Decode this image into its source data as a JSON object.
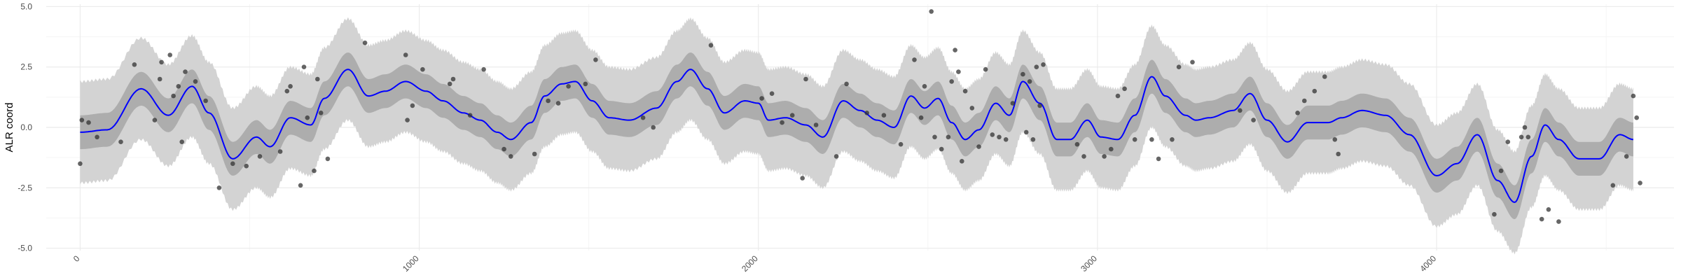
{
  "chart_data": {
    "type": "line",
    "title": "",
    "xlabel": "",
    "ylabel": "ALR coord",
    "xlim": [
      -100,
      4700
    ],
    "ylim": [
      -5.1,
      5.1
    ],
    "x_ticks": [
      0,
      1000,
      2000,
      3000,
      4000
    ],
    "y_ticks": [
      -5.0,
      -2.5,
      0.0,
      2.5,
      5.0
    ],
    "x_tick_labels": [
      "0",
      "1000",
      "2000",
      "3000",
      "4000"
    ],
    "y_tick_labels": [
      "-5.0",
      "-2.5",
      "0.0",
      "2.5",
      "5.0"
    ],
    "grid": true,
    "legend": "none",
    "colors": {
      "mean_line": "#0000ff",
      "inner_band": "#adadad",
      "outer_band": "#d3d3d3",
      "points": "#333333",
      "grid_major": "#ebebeb",
      "grid_minor": "#f5f5f5",
      "background": "#ffffff"
    },
    "mean": {
      "x": [
        0,
        80,
        180,
        260,
        330,
        380,
        450,
        520,
        560,
        620,
        680,
        720,
        790,
        850,
        900,
        960,
        1020,
        1070,
        1130,
        1180,
        1230,
        1270,
        1330,
        1370,
        1420,
        1460,
        1510,
        1560,
        1620,
        1700,
        1760,
        1800,
        1850,
        1900,
        1960,
        2000,
        2030,
        2080,
        2140,
        2190,
        2250,
        2300,
        2350,
        2400,
        2450,
        2490,
        2530,
        2570,
        2610,
        2650,
        2700,
        2740,
        2780,
        2830,
        2880,
        2920,
        2970,
        3010,
        3060,
        3110,
        3160,
        3200,
        3260,
        3290,
        3330,
        3400,
        3450,
        3500,
        3560,
        3620,
        3680,
        3720,
        3780,
        3850,
        3920,
        4000,
        4060,
        4120,
        4180,
        4230,
        4280,
        4320,
        4360,
        4420,
        4480,
        4540,
        4580
      ],
      "y": [
        -0.2,
        -0.1,
        1.6,
        0.5,
        1.7,
        0.6,
        -1.3,
        -0.4,
        -0.8,
        0.4,
        0.1,
        1.2,
        2.4,
        1.3,
        1.5,
        1.9,
        1.5,
        1.1,
        0.6,
        0.3,
        -0.2,
        -0.5,
        0.2,
        1.3,
        1.8,
        1.9,
        1.1,
        0.4,
        0.3,
        0.8,
        1.9,
        2.4,
        1.6,
        0.6,
        1.1,
        1.0,
        0.3,
        0.4,
        0.1,
        -0.4,
        1.1,
        0.7,
        0.3,
        0.0,
        1.3,
        0.8,
        1.2,
        0.2,
        -0.5,
        -0.1,
        1.0,
        0.5,
        1.9,
        1.0,
        -0.5,
        -0.5,
        0.3,
        -0.4,
        -0.5,
        0.5,
        2.1,
        1.3,
        0.5,
        0.3,
        0.4,
        0.7,
        1.4,
        0.3,
        -0.6,
        0.2,
        0.2,
        0.4,
        0.7,
        0.5,
        -0.3,
        -2.0,
        -1.5,
        -0.3,
        -2.2,
        -3.1,
        -1.2,
        0.1,
        -0.5,
        -1.3,
        -1.3,
        -0.3,
        -0.5
      ]
    },
    "inner_band_halfwidth": 0.7,
    "outer_band_halfwidth": 2.1,
    "points": [
      {
        "x": 0,
        "y": -1.5
      },
      {
        "x": 5,
        "y": 0.3
      },
      {
        "x": 25,
        "y": 0.2
      },
      {
        "x": 50,
        "y": -0.4
      },
      {
        "x": 120,
        "y": -0.6
      },
      {
        "x": 160,
        "y": 2.6
      },
      {
        "x": 220,
        "y": 0.3
      },
      {
        "x": 235,
        "y": 2.0
      },
      {
        "x": 240,
        "y": 2.7
      },
      {
        "x": 265,
        "y": 3.0
      },
      {
        "x": 275,
        "y": 1.3
      },
      {
        "x": 290,
        "y": 1.7
      },
      {
        "x": 300,
        "y": -0.6
      },
      {
        "x": 310,
        "y": 2.3
      },
      {
        "x": 340,
        "y": 1.9
      },
      {
        "x": 370,
        "y": 1.1
      },
      {
        "x": 410,
        "y": -2.5
      },
      {
        "x": 450,
        "y": -1.5
      },
      {
        "x": 490,
        "y": -1.6
      },
      {
        "x": 530,
        "y": -1.2
      },
      {
        "x": 590,
        "y": -1.0
      },
      {
        "x": 610,
        "y": 1.5
      },
      {
        "x": 620,
        "y": 1.7
      },
      {
        "x": 650,
        "y": -2.4
      },
      {
        "x": 660,
        "y": 2.5
      },
      {
        "x": 670,
        "y": 0.4
      },
      {
        "x": 690,
        "y": -1.8
      },
      {
        "x": 700,
        "y": 2.0
      },
      {
        "x": 710,
        "y": 0.6
      },
      {
        "x": 730,
        "y": -1.3
      },
      {
        "x": 840,
        "y": 3.5
      },
      {
        "x": 960,
        "y": 3.0
      },
      {
        "x": 965,
        "y": 0.3
      },
      {
        "x": 980,
        "y": 0.9
      },
      {
        "x": 1010,
        "y": 2.4
      },
      {
        "x": 1090,
        "y": 1.8
      },
      {
        "x": 1100,
        "y": 2.0
      },
      {
        "x": 1150,
        "y": 0.5
      },
      {
        "x": 1190,
        "y": 2.4
      },
      {
        "x": 1250,
        "y": -0.9
      },
      {
        "x": 1270,
        "y": -1.2
      },
      {
        "x": 1340,
        "y": -1.1
      },
      {
        "x": 1380,
        "y": 1.1
      },
      {
        "x": 1410,
        "y": 1.0
      },
      {
        "x": 1440,
        "y": 1.7
      },
      {
        "x": 1490,
        "y": 1.8
      },
      {
        "x": 1520,
        "y": 2.8
      },
      {
        "x": 1660,
        "y": 0.4
      },
      {
        "x": 1690,
        "y": 0.0
      },
      {
        "x": 1860,
        "y": 3.4
      },
      {
        "x": 2010,
        "y": 1.2
      },
      {
        "x": 2040,
        "y": 1.4
      },
      {
        "x": 2070,
        "y": 0.2
      },
      {
        "x": 2100,
        "y": 0.5
      },
      {
        "x": 2130,
        "y": -2.1
      },
      {
        "x": 2140,
        "y": 2.0
      },
      {
        "x": 2170,
        "y": 0.1
      },
      {
        "x": 2230,
        "y": -1.2
      },
      {
        "x": 2260,
        "y": 1.8
      },
      {
        "x": 2320,
        "y": 0.6
      },
      {
        "x": 2370,
        "y": 0.5
      },
      {
        "x": 2420,
        "y": -0.7
      },
      {
        "x": 2460,
        "y": 2.8
      },
      {
        "x": 2480,
        "y": 0.4
      },
      {
        "x": 2490,
        "y": 1.7
      },
      {
        "x": 2510,
        "y": 4.8
      },
      {
        "x": 2520,
        "y": -0.4
      },
      {
        "x": 2540,
        "y": -0.9
      },
      {
        "x": 2560,
        "y": -0.4
      },
      {
        "x": 2570,
        "y": 1.9
      },
      {
        "x": 2580,
        "y": 3.2
      },
      {
        "x": 2590,
        "y": 2.3
      },
      {
        "x": 2600,
        "y": -1.4
      },
      {
        "x": 2610,
        "y": 1.5
      },
      {
        "x": 2630,
        "y": 0.8
      },
      {
        "x": 2650,
        "y": -0.8
      },
      {
        "x": 2670,
        "y": 2.4
      },
      {
        "x": 2690,
        "y": -0.3
      },
      {
        "x": 2710,
        "y": -0.4
      },
      {
        "x": 2730,
        "y": -0.5
      },
      {
        "x": 2750,
        "y": 1.0
      },
      {
        "x": 2780,
        "y": 2.2
      },
      {
        "x": 2790,
        "y": -0.2
      },
      {
        "x": 2800,
        "y": 1.9
      },
      {
        "x": 2810,
        "y": -0.5
      },
      {
        "x": 2820,
        "y": 2.5
      },
      {
        "x": 2830,
        "y": 0.9
      },
      {
        "x": 2840,
        "y": 2.6
      },
      {
        "x": 2940,
        "y": -0.7
      },
      {
        "x": 2960,
        "y": -1.2
      },
      {
        "x": 3020,
        "y": -1.2
      },
      {
        "x": 3040,
        "y": -0.9
      },
      {
        "x": 3060,
        "y": 1.3
      },
      {
        "x": 3080,
        "y": 1.6
      },
      {
        "x": 3110,
        "y": -0.5
      },
      {
        "x": 3160,
        "y": -0.5
      },
      {
        "x": 3180,
        "y": -1.3
      },
      {
        "x": 3220,
        "y": -0.5
      },
      {
        "x": 3240,
        "y": 2.5
      },
      {
        "x": 3280,
        "y": 2.7
      },
      {
        "x": 3420,
        "y": 0.7
      },
      {
        "x": 3460,
        "y": 0.3
      },
      {
        "x": 3590,
        "y": 0.6
      },
      {
        "x": 3610,
        "y": 1.1
      },
      {
        "x": 3640,
        "y": 1.5
      },
      {
        "x": 3670,
        "y": 2.1
      },
      {
        "x": 3700,
        "y": -0.5
      },
      {
        "x": 3710,
        "y": -1.1
      },
      {
        "x": 4170,
        "y": -3.6
      },
      {
        "x": 4190,
        "y": -1.8
      },
      {
        "x": 4210,
        "y": -0.6
      },
      {
        "x": 4250,
        "y": -0.4
      },
      {
        "x": 4260,
        "y": 0.0
      },
      {
        "x": 4270,
        "y": -0.4
      },
      {
        "x": 4310,
        "y": -3.8
      },
      {
        "x": 4330,
        "y": -3.4
      },
      {
        "x": 4360,
        "y": -3.9
      },
      {
        "x": 4520,
        "y": -2.4
      },
      {
        "x": 4560,
        "y": -1.2
      },
      {
        "x": 4580,
        "y": 1.3
      },
      {
        "x": 4590,
        "y": 0.4
      },
      {
        "x": 4600,
        "y": -2.3
      }
    ]
  }
}
